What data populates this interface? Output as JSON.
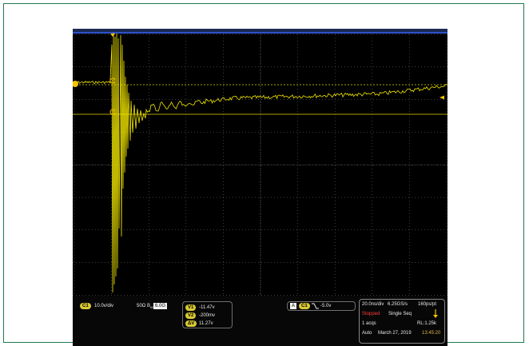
{
  "colors": {
    "trace": "#f2e600",
    "cursor": "#e6d600",
    "grid": "#7a7a7a",
    "frame": "#1f7a52",
    "status_stopped": "#ff3b3b",
    "time": "#e0b34a"
  },
  "channel": {
    "tag": "C1",
    "scale": "10.0v/div",
    "impedance": "50Ω",
    "bandwidth_prefix": "B",
    "bandwidth_sub": "W",
    "bandwidth": "6.0G"
  },
  "cursors": {
    "v1_tag": "V1",
    "v1": "-11.47v",
    "v2_tag": "V2",
    "v2": "-200mv",
    "dv_tag": "ΔV",
    "dv": "11.27v"
  },
  "trigger": {
    "mode_tag": "A",
    "source_tag": "C1",
    "slope_icon": "falling-edge-icon",
    "level": "-5.0v"
  },
  "acquisition": {
    "timebase": "20.0ns/div",
    "sample_rate": "6.25GS/s",
    "resolution": "160ps/pt",
    "status": "Stopped",
    "mode": "Single Seq",
    "acqs": "1 acqs",
    "record_length": "RL:1.25k",
    "trigger_mode": "Auto",
    "date": "March 27, 2019",
    "time": "13:45:20"
  },
  "markers": {
    "trigger_position_icon": "triangle-down-icon",
    "channel_ground_icon": "circle-marker-icon",
    "cursor_a_label": "a",
    "cursor_b_label": "b",
    "trigger_level_icon": "arrow-left-icon"
  }
}
